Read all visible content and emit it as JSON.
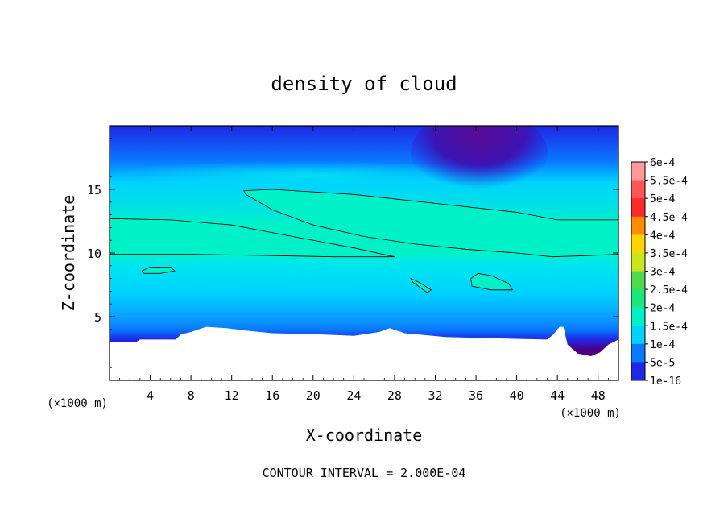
{
  "chart_data": {
    "type": "heatmap",
    "title": "density of cloud",
    "xlabel": "X-coordinate",
    "ylabel": "Z-coordinate",
    "x_unit_left": "(×1000 m)",
    "x_unit_right": "(×1000 m)",
    "footer": "CONTOUR INTERVAL = 2.000E-04",
    "xlim": [
      0,
      50
    ],
    "ylim": [
      0,
      20
    ],
    "x_ticks": [
      4,
      8,
      12,
      16,
      20,
      24,
      28,
      32,
      36,
      40,
      44,
      48
    ],
    "x_tick_labels": [
      "4",
      "8",
      "12",
      "16",
      "20",
      "24",
      "28",
      "32",
      "36",
      "40",
      "44",
      "48"
    ],
    "y_ticks": [
      5,
      10,
      15
    ],
    "y_tick_labels": [
      "5",
      "10",
      "15"
    ],
    "colorbar": {
      "labels": [
        "6e-4",
        "5.5e-4",
        "5e-4",
        "4.5e-4",
        "4e-4",
        "3.5e-4",
        "3e-4",
        "2.5e-4",
        "2e-4",
        "1.5e-4",
        "1e-4",
        "5e-5",
        "1e-16"
      ],
      "colors": [
        "#ff9999",
        "#ff5555",
        "#ff2a2a",
        "#ff8c00",
        "#ffd500",
        "#c8e61e",
        "#4ed84e",
        "#1ee678",
        "#00f0c8",
        "#00d2ff",
        "#0a78ff",
        "#1e28e6",
        "#4b0082"
      ]
    },
    "terrain_height": [
      [
        0,
        3.0
      ],
      [
        2.6,
        3.0
      ],
      [
        3.0,
        3.2
      ],
      [
        6.5,
        3.2
      ],
      [
        7.0,
        3.6
      ],
      [
        8.0,
        3.8
      ],
      [
        9.5,
        4.2
      ],
      [
        11.5,
        4.1
      ],
      [
        13.5,
        3.9
      ],
      [
        16.0,
        3.7
      ],
      [
        21.0,
        3.6
      ],
      [
        24.0,
        3.5
      ],
      [
        26.5,
        3.8
      ],
      [
        27.5,
        4.1
      ],
      [
        29.0,
        3.7
      ],
      [
        33.0,
        3.4
      ],
      [
        38.0,
        3.3
      ],
      [
        43.0,
        3.2
      ],
      [
        43.6,
        3.6
      ],
      [
        44.2,
        4.2
      ],
      [
        44.6,
        4.2
      ],
      [
        45.0,
        2.8
      ],
      [
        46.0,
        2.1
      ],
      [
        47.3,
        1.9
      ],
      [
        48.2,
        2.2
      ],
      [
        49.0,
        2.8
      ],
      [
        50.0,
        3.2
      ]
    ],
    "contour_regions_2e-4": [
      [
        [
          0,
          9.9
        ],
        [
          8,
          9.9
        ],
        [
          16,
          9.8
        ],
        [
          22,
          9.7
        ],
        [
          26,
          9.7
        ],
        [
          28,
          9.7
        ],
        [
          24,
          10.4
        ],
        [
          18,
          11.3
        ],
        [
          12,
          12.2
        ],
        [
          6,
          12.6
        ],
        [
          0,
          12.7
        ]
      ],
      [
        [
          13.2,
          14.9
        ],
        [
          16,
          15.0
        ],
        [
          24,
          14.6
        ],
        [
          32,
          13.9
        ],
        [
          40,
          13.2
        ],
        [
          44,
          12.6
        ],
        [
          50,
          12.6
        ],
        [
          50,
          9.9
        ],
        [
          47,
          9.8
        ],
        [
          43.5,
          9.7
        ],
        [
          40,
          10.0
        ],
        [
          35,
          10.3
        ],
        [
          30,
          10.7
        ],
        [
          25,
          11.3
        ],
        [
          20,
          12.2
        ],
        [
          16,
          13.4
        ],
        [
          13.4,
          14.6
        ]
      ],
      [
        [
          3.2,
          8.6
        ],
        [
          4.0,
          8.9
        ],
        [
          6.0,
          8.9
        ],
        [
          6.4,
          8.6
        ],
        [
          5.0,
          8.4
        ],
        [
          3.4,
          8.4
        ]
      ],
      [
        [
          29.6,
          8.0
        ],
        [
          30.4,
          7.7
        ],
        [
          31.6,
          7.1
        ],
        [
          31.2,
          6.9
        ],
        [
          29.8,
          7.7
        ]
      ],
      [
        [
          35.5,
          8.0
        ],
        [
          36.2,
          8.4
        ],
        [
          37.6,
          8.2
        ],
        [
          39.2,
          7.6
        ],
        [
          39.6,
          7.1
        ],
        [
          37.5,
          7.1
        ],
        [
          35.6,
          7.4
        ]
      ]
    ]
  }
}
